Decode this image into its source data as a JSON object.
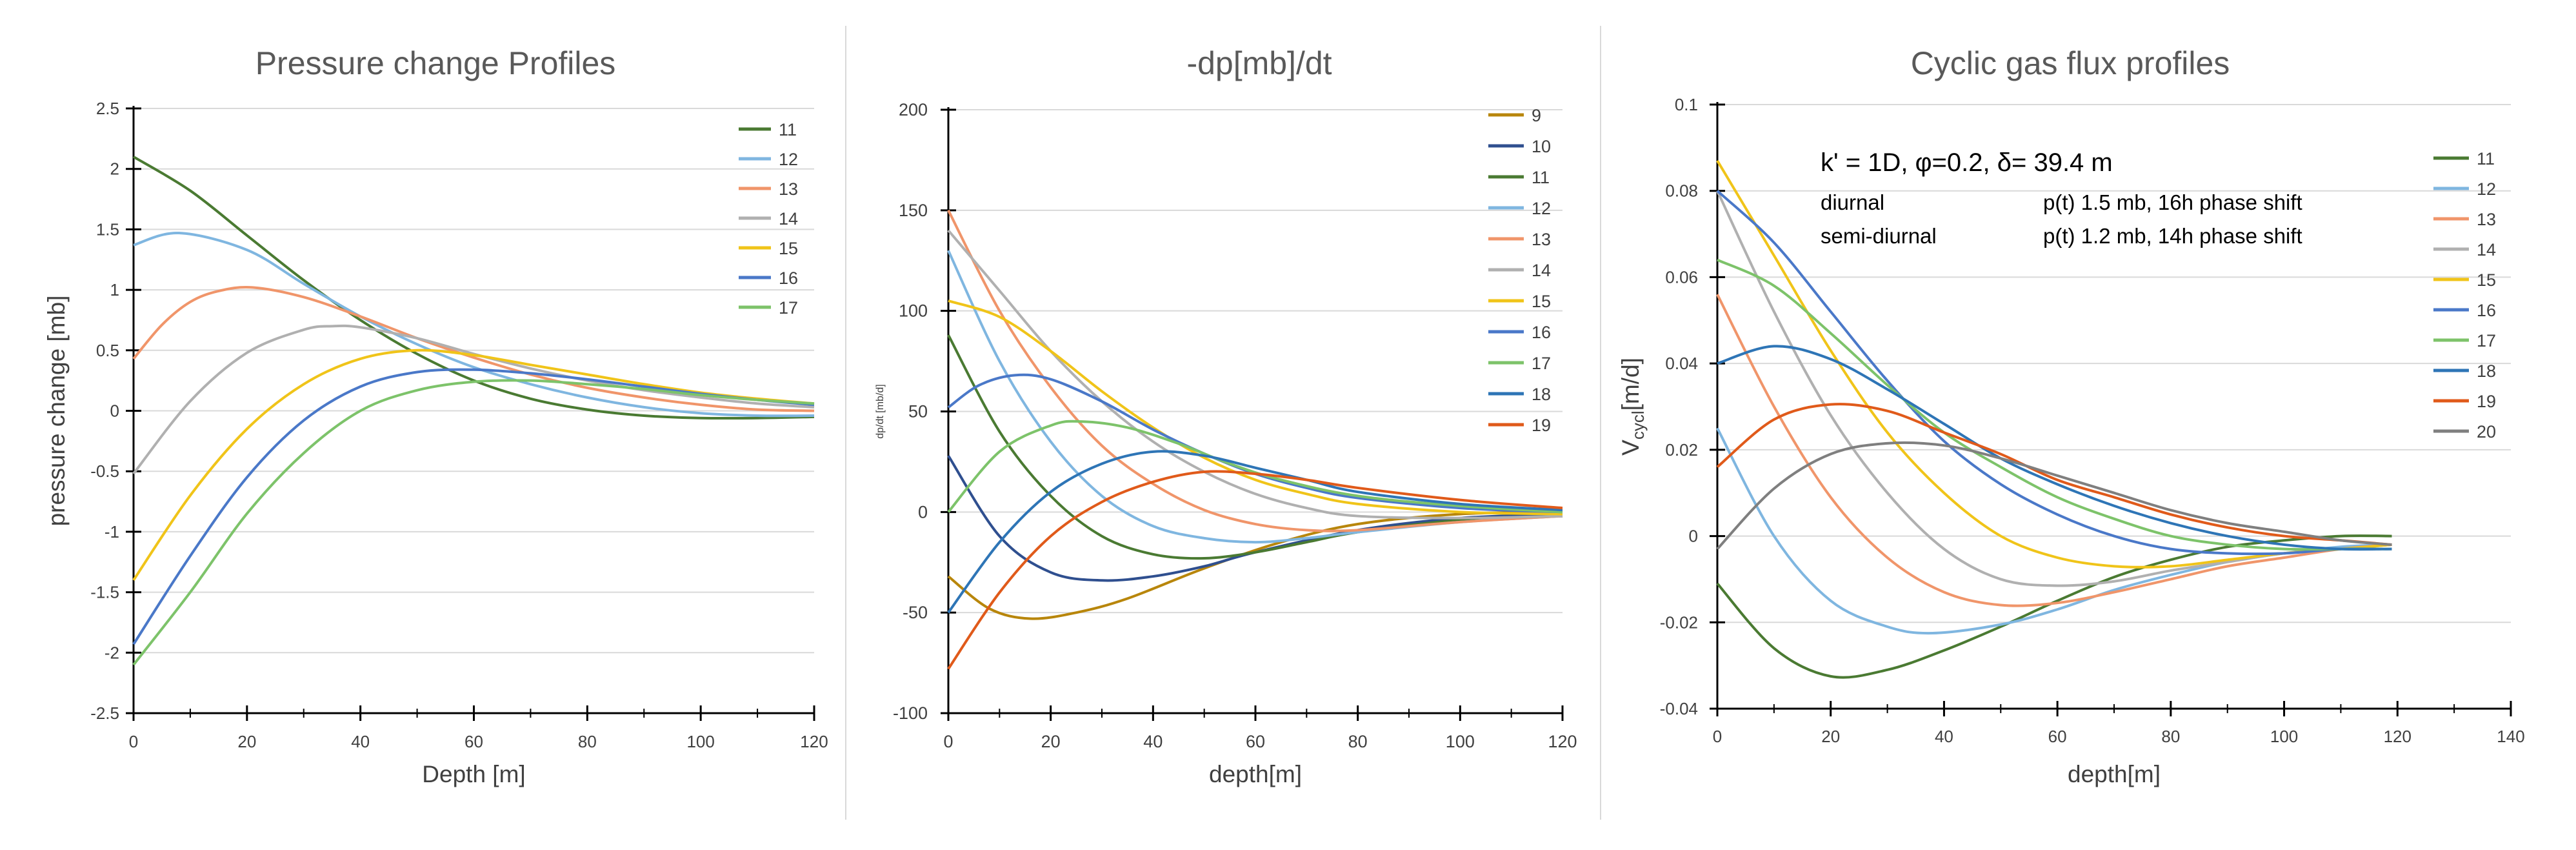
{
  "chart_data": [
    {
      "type": "line",
      "title": "Pressure change Profiles",
      "xlabel": "Depth [m]",
      "ylabel": "pressure change [mb]",
      "xlim": [
        0,
        120
      ],
      "ylim": [
        -2.5,
        2.5
      ],
      "xticks": [
        0,
        20,
        40,
        60,
        80,
        100,
        120
      ],
      "yticks": [
        -2.5,
        -2,
        -1.5,
        -1,
        -0.5,
        0,
        0.5,
        1,
        1.5,
        2,
        2.5
      ],
      "xtick_labels": [
        "0",
        "20",
        "40",
        "60",
        "80",
        "100",
        "120"
      ],
      "ytick_labels": [
        "-2.5",
        "-2",
        "-1.5",
        "-1",
        "-0.5",
        "0",
        "0.5",
        "1",
        "1.5",
        "2",
        "2.5"
      ],
      "grid": "horizontal",
      "legend_position": "top-right",
      "series": [
        {
          "name": "11",
          "color": "#4a7a32",
          "x": [
            0,
            10,
            20,
            30,
            40,
            50,
            60,
            70,
            80,
            90,
            100,
            110,
            120
          ],
          "values": [
            2.1,
            1.82,
            1.45,
            1.08,
            0.75,
            0.47,
            0.25,
            0.1,
            0.01,
            -0.04,
            -0.06,
            -0.06,
            -0.05
          ]
        },
        {
          "name": "12",
          "color": "#7fb6e0",
          "x": [
            0,
            8,
            20,
            30,
            40,
            50,
            60,
            70,
            80,
            90,
            100,
            110,
            120
          ],
          "values": [
            1.37,
            1.47,
            1.33,
            1.05,
            0.78,
            0.55,
            0.36,
            0.22,
            0.11,
            0.03,
            -0.02,
            -0.04,
            -0.04
          ]
        },
        {
          "name": "13",
          "color": "#f0956a",
          "x": [
            0,
            5,
            10,
            15,
            21,
            30,
            40,
            50,
            60,
            70,
            80,
            90,
            100,
            110,
            120
          ],
          "values": [
            0.43,
            0.71,
            0.9,
            0.99,
            1.02,
            0.94,
            0.78,
            0.6,
            0.44,
            0.3,
            0.19,
            0.11,
            0.05,
            0.01,
            0.0
          ]
        },
        {
          "name": "14",
          "color": "#b0b0b0",
          "x": [
            0,
            10,
            20,
            30,
            35,
            40,
            50,
            60,
            70,
            80,
            90,
            100,
            110,
            120
          ],
          "values": [
            -0.52,
            0.08,
            0.48,
            0.67,
            0.7,
            0.69,
            0.6,
            0.47,
            0.35,
            0.25,
            0.17,
            0.11,
            0.06,
            0.03
          ]
        },
        {
          "name": "15",
          "color": "#f0c419",
          "x": [
            0,
            10,
            20,
            30,
            40,
            50,
            60,
            70,
            80,
            90,
            100,
            110,
            120
          ],
          "values": [
            -1.4,
            -0.7,
            -0.15,
            0.22,
            0.43,
            0.5,
            0.46,
            0.38,
            0.3,
            0.22,
            0.15,
            0.1,
            0.06
          ]
        },
        {
          "name": "16",
          "color": "#4a78c8",
          "x": [
            0,
            10,
            20,
            30,
            40,
            50,
            60,
            70,
            80,
            90,
            100,
            110,
            120
          ],
          "values": [
            -1.93,
            -1.2,
            -0.55,
            -0.08,
            0.2,
            0.32,
            0.34,
            0.31,
            0.26,
            0.2,
            0.14,
            0.09,
            0.05
          ]
        },
        {
          "name": "17",
          "color": "#7dc36a",
          "x": [
            0,
            10,
            20,
            30,
            40,
            50,
            60,
            70,
            80,
            90,
            100,
            110,
            120
          ],
          "values": [
            -2.1,
            -1.5,
            -0.85,
            -0.35,
            0.0,
            0.17,
            0.24,
            0.25,
            0.22,
            0.18,
            0.13,
            0.09,
            0.06
          ]
        }
      ]
    },
    {
      "type": "line",
      "title": "-dp[mb]/dt",
      "xlabel": "depth[m]",
      "ylabel": "dp/dt [mb/d]",
      "xlim": [
        0,
        120
      ],
      "ylim": [
        -100,
        200
      ],
      "xticks": [
        0,
        20,
        40,
        60,
        80,
        100,
        120
      ],
      "yticks": [
        -100,
        -50,
        0,
        50,
        100,
        150,
        200
      ],
      "xtick_labels": [
        "0",
        "20",
        "40",
        "60",
        "80",
        "100",
        "120"
      ],
      "ytick_labels": [
        "-100",
        "-50",
        "0",
        "50",
        "100",
        "150",
        "200"
      ],
      "grid": "horizontal",
      "legend_position": "right",
      "series": [
        {
          "name": "9",
          "color": "#b8860b",
          "x": [
            0,
            8,
            16,
            25,
            35,
            50,
            65,
            80,
            100,
            120
          ],
          "values": [
            -32,
            -48,
            -53,
            -50,
            -43,
            -28,
            -15,
            -6,
            -1,
            0
          ]
        },
        {
          "name": "10",
          "color": "#2f4f8f",
          "x": [
            0,
            10,
            20,
            30,
            40,
            50,
            60,
            80,
            100,
            120
          ],
          "values": [
            28,
            -12,
            -30,
            -34,
            -32,
            -27,
            -20,
            -9,
            -3,
            -1
          ]
        },
        {
          "name": "11",
          "color": "#4a7a32",
          "x": [
            0,
            10,
            20,
            30,
            40,
            50,
            60,
            70,
            80,
            100,
            120
          ],
          "values": [
            88,
            40,
            8,
            -12,
            -21,
            -23,
            -20,
            -15,
            -10,
            -4,
            -2
          ]
        },
        {
          "name": "12",
          "color": "#7fb6e0",
          "x": [
            0,
            10,
            20,
            30,
            40,
            50,
            60,
            70,
            80,
            100,
            120
          ],
          "values": [
            130,
            75,
            35,
            8,
            -7,
            -13,
            -15,
            -13,
            -10,
            -5,
            -2
          ]
        },
        {
          "name": "13",
          "color": "#f0956a",
          "x": [
            0,
            10,
            20,
            30,
            40,
            50,
            60,
            70,
            80,
            100,
            120
          ],
          "values": [
            150,
            100,
            62,
            33,
            14,
            1,
            -6,
            -9,
            -9,
            -5,
            -2
          ]
        },
        {
          "name": "14",
          "color": "#b0b0b0",
          "x": [
            0,
            10,
            20,
            30,
            40,
            50,
            60,
            70,
            80,
            100,
            120
          ],
          "values": [
            140,
            110,
            80,
            55,
            35,
            20,
            9,
            2,
            -2,
            -3,
            -2
          ]
        },
        {
          "name": "15",
          "color": "#f0c419",
          "x": [
            0,
            10,
            20,
            30,
            40,
            50,
            60,
            70,
            80,
            100,
            120
          ],
          "values": [
            105,
            97,
            80,
            60,
            42,
            27,
            16,
            9,
            4,
            0,
            -1
          ]
        },
        {
          "name": "16",
          "color": "#4a78c8",
          "x": [
            0,
            6,
            13,
            20,
            30,
            40,
            50,
            60,
            70,
            80,
            100,
            120
          ],
          "values": [
            52,
            63,
            68,
            66,
            55,
            41,
            29,
            19,
            12,
            7,
            2,
            0
          ]
        },
        {
          "name": "17",
          "color": "#7dc36a",
          "x": [
            0,
            10,
            20,
            26,
            35,
            45,
            55,
            65,
            80,
            100,
            120
          ],
          "values": [
            0,
            30,
            43,
            45,
            42,
            34,
            24,
            16,
            8,
            3,
            0
          ]
        },
        {
          "name": "18",
          "color": "#2e75b6",
          "x": [
            0,
            10,
            20,
            30,
            40,
            50,
            60,
            70,
            80,
            100,
            120
          ],
          "values": [
            -50,
            -15,
            10,
            24,
            30,
            28,
            22,
            16,
            10,
            4,
            1
          ]
        },
        {
          "name": "19",
          "color": "#e05a1a",
          "x": [
            0,
            10,
            20,
            30,
            40,
            50,
            60,
            70,
            80,
            100,
            120
          ],
          "values": [
            -78,
            -40,
            -12,
            5,
            15,
            20,
            19,
            16,
            12,
            6,
            2
          ]
        }
      ]
    },
    {
      "type": "line",
      "title": "Cyclic gas flux profiles",
      "xlabel": "depth[m]",
      "ylabel": "V",
      "ylabel_subscript": "cycl",
      "ylabel_suffix": "[m/d]",
      "xlim": [
        0,
        140
      ],
      "ylim": [
        -0.04,
        0.1
      ],
      "xticks": [
        0,
        20,
        40,
        60,
        80,
        100,
        120,
        140
      ],
      "yticks": [
        -0.04,
        -0.02,
        0,
        0.02,
        0.04,
        0.06,
        0.08,
        0.1
      ],
      "xtick_labels": [
        "0",
        "20",
        "40",
        "60",
        "80",
        "100",
        "120",
        "140"
      ],
      "ytick_labels": [
        "-0.04",
        "-0.02",
        "0",
        "0.02",
        "0.04",
        "0.06",
        "0.08",
        "0.1"
      ],
      "grid": "horizontal",
      "legend_position": "right",
      "annotations": {
        "line1": "k' = 1D, φ=0.2, δ= 39.4 m",
        "diurnal_label": "diurnal",
        "diurnal_value": "p(t)  1.5 mb, 16h phase shift",
        "semidiurnal_label": "semi-diurnal",
        "semidiurnal_value": "p(t)  1.2 mb, 14h phase shift"
      },
      "series": [
        {
          "name": "11",
          "color": "#4a7a32",
          "x": [
            0,
            10,
            20,
            30,
            40,
            50,
            60,
            70,
            80,
            90,
            100,
            110,
            119
          ],
          "values": [
            -0.011,
            -0.026,
            -0.0325,
            -0.031,
            -0.0265,
            -0.021,
            -0.015,
            -0.0095,
            -0.0055,
            -0.0025,
            -0.001,
            0.0,
            0.0
          ]
        },
        {
          "name": "12",
          "color": "#7fb6e0",
          "x": [
            0,
            10,
            20,
            30,
            38,
            50,
            60,
            70,
            80,
            90,
            100,
            110,
            119
          ],
          "values": [
            0.025,
            0.0,
            -0.015,
            -0.021,
            -0.0225,
            -0.0205,
            -0.017,
            -0.0125,
            -0.009,
            -0.006,
            -0.004,
            -0.0025,
            -0.002
          ]
        },
        {
          "name": "13",
          "color": "#f0956a",
          "x": [
            0,
            10,
            20,
            30,
            40,
            50,
            60,
            70,
            80,
            90,
            100,
            110,
            119
          ],
          "values": [
            0.056,
            0.03,
            0.009,
            -0.005,
            -0.013,
            -0.016,
            -0.0155,
            -0.013,
            -0.01,
            -0.007,
            -0.005,
            -0.003,
            -0.002
          ]
        },
        {
          "name": "14",
          "color": "#b0b0b0",
          "x": [
            0,
            10,
            20,
            30,
            40,
            50,
            60,
            70,
            80,
            90,
            100,
            110,
            119
          ],
          "values": [
            0.08,
            0.052,
            0.028,
            0.01,
            -0.003,
            -0.01,
            -0.0115,
            -0.0105,
            -0.008,
            -0.006,
            -0.004,
            -0.003,
            -0.002
          ]
        },
        {
          "name": "15",
          "color": "#f0c419",
          "x": [
            0,
            10,
            20,
            30,
            40,
            50,
            60,
            70,
            80,
            90,
            100,
            110,
            119
          ],
          "values": [
            0.087,
            0.065,
            0.043,
            0.024,
            0.01,
            0.0,
            -0.005,
            -0.007,
            -0.007,
            -0.0055,
            -0.004,
            -0.003,
            -0.002
          ]
        },
        {
          "name": "16",
          "color": "#4a78c8",
          "x": [
            0,
            10,
            20,
            30,
            40,
            50,
            60,
            70,
            80,
            90,
            100,
            110,
            119
          ],
          "values": [
            0.08,
            0.068,
            0.052,
            0.036,
            0.022,
            0.012,
            0.005,
            0.0,
            -0.003,
            -0.004,
            -0.004,
            -0.003,
            -0.003
          ]
        },
        {
          "name": "17",
          "color": "#7dc36a",
          "x": [
            0,
            10,
            20,
            30,
            40,
            50,
            60,
            70,
            80,
            90,
            100,
            110,
            119
          ],
          "values": [
            0.064,
            0.058,
            0.047,
            0.035,
            0.024,
            0.016,
            0.009,
            0.004,
            0.0,
            -0.002,
            -0.003,
            -0.003,
            -0.003
          ]
        },
        {
          "name": "18",
          "color": "#2e75b6",
          "x": [
            0,
            10,
            20,
            30,
            40,
            50,
            60,
            70,
            80,
            90,
            100,
            110,
            119
          ],
          "values": [
            0.04,
            0.044,
            0.041,
            0.034,
            0.026,
            0.018,
            0.012,
            0.007,
            0.003,
            0.0,
            -0.002,
            -0.003,
            -0.003
          ]
        },
        {
          "name": "19",
          "color": "#e05a1a",
          "x": [
            0,
            10,
            20,
            30,
            40,
            50,
            60,
            70,
            80,
            90,
            100,
            110,
            119
          ],
          "values": [
            0.016,
            0.027,
            0.0305,
            0.029,
            0.024,
            0.019,
            0.013,
            0.009,
            0.005,
            0.002,
            0.0,
            -0.001,
            -0.002
          ]
        },
        {
          "name": "20",
          "color": "#7f7f7f",
          "x": [
            0,
            10,
            20,
            30,
            40,
            50,
            60,
            70,
            80,
            90,
            100,
            110,
            119
          ],
          "values": [
            -0.003,
            0.011,
            0.019,
            0.0215,
            0.021,
            0.018,
            0.014,
            0.01,
            0.006,
            0.003,
            0.001,
            -0.001,
            -0.002
          ]
        }
      ]
    }
  ]
}
